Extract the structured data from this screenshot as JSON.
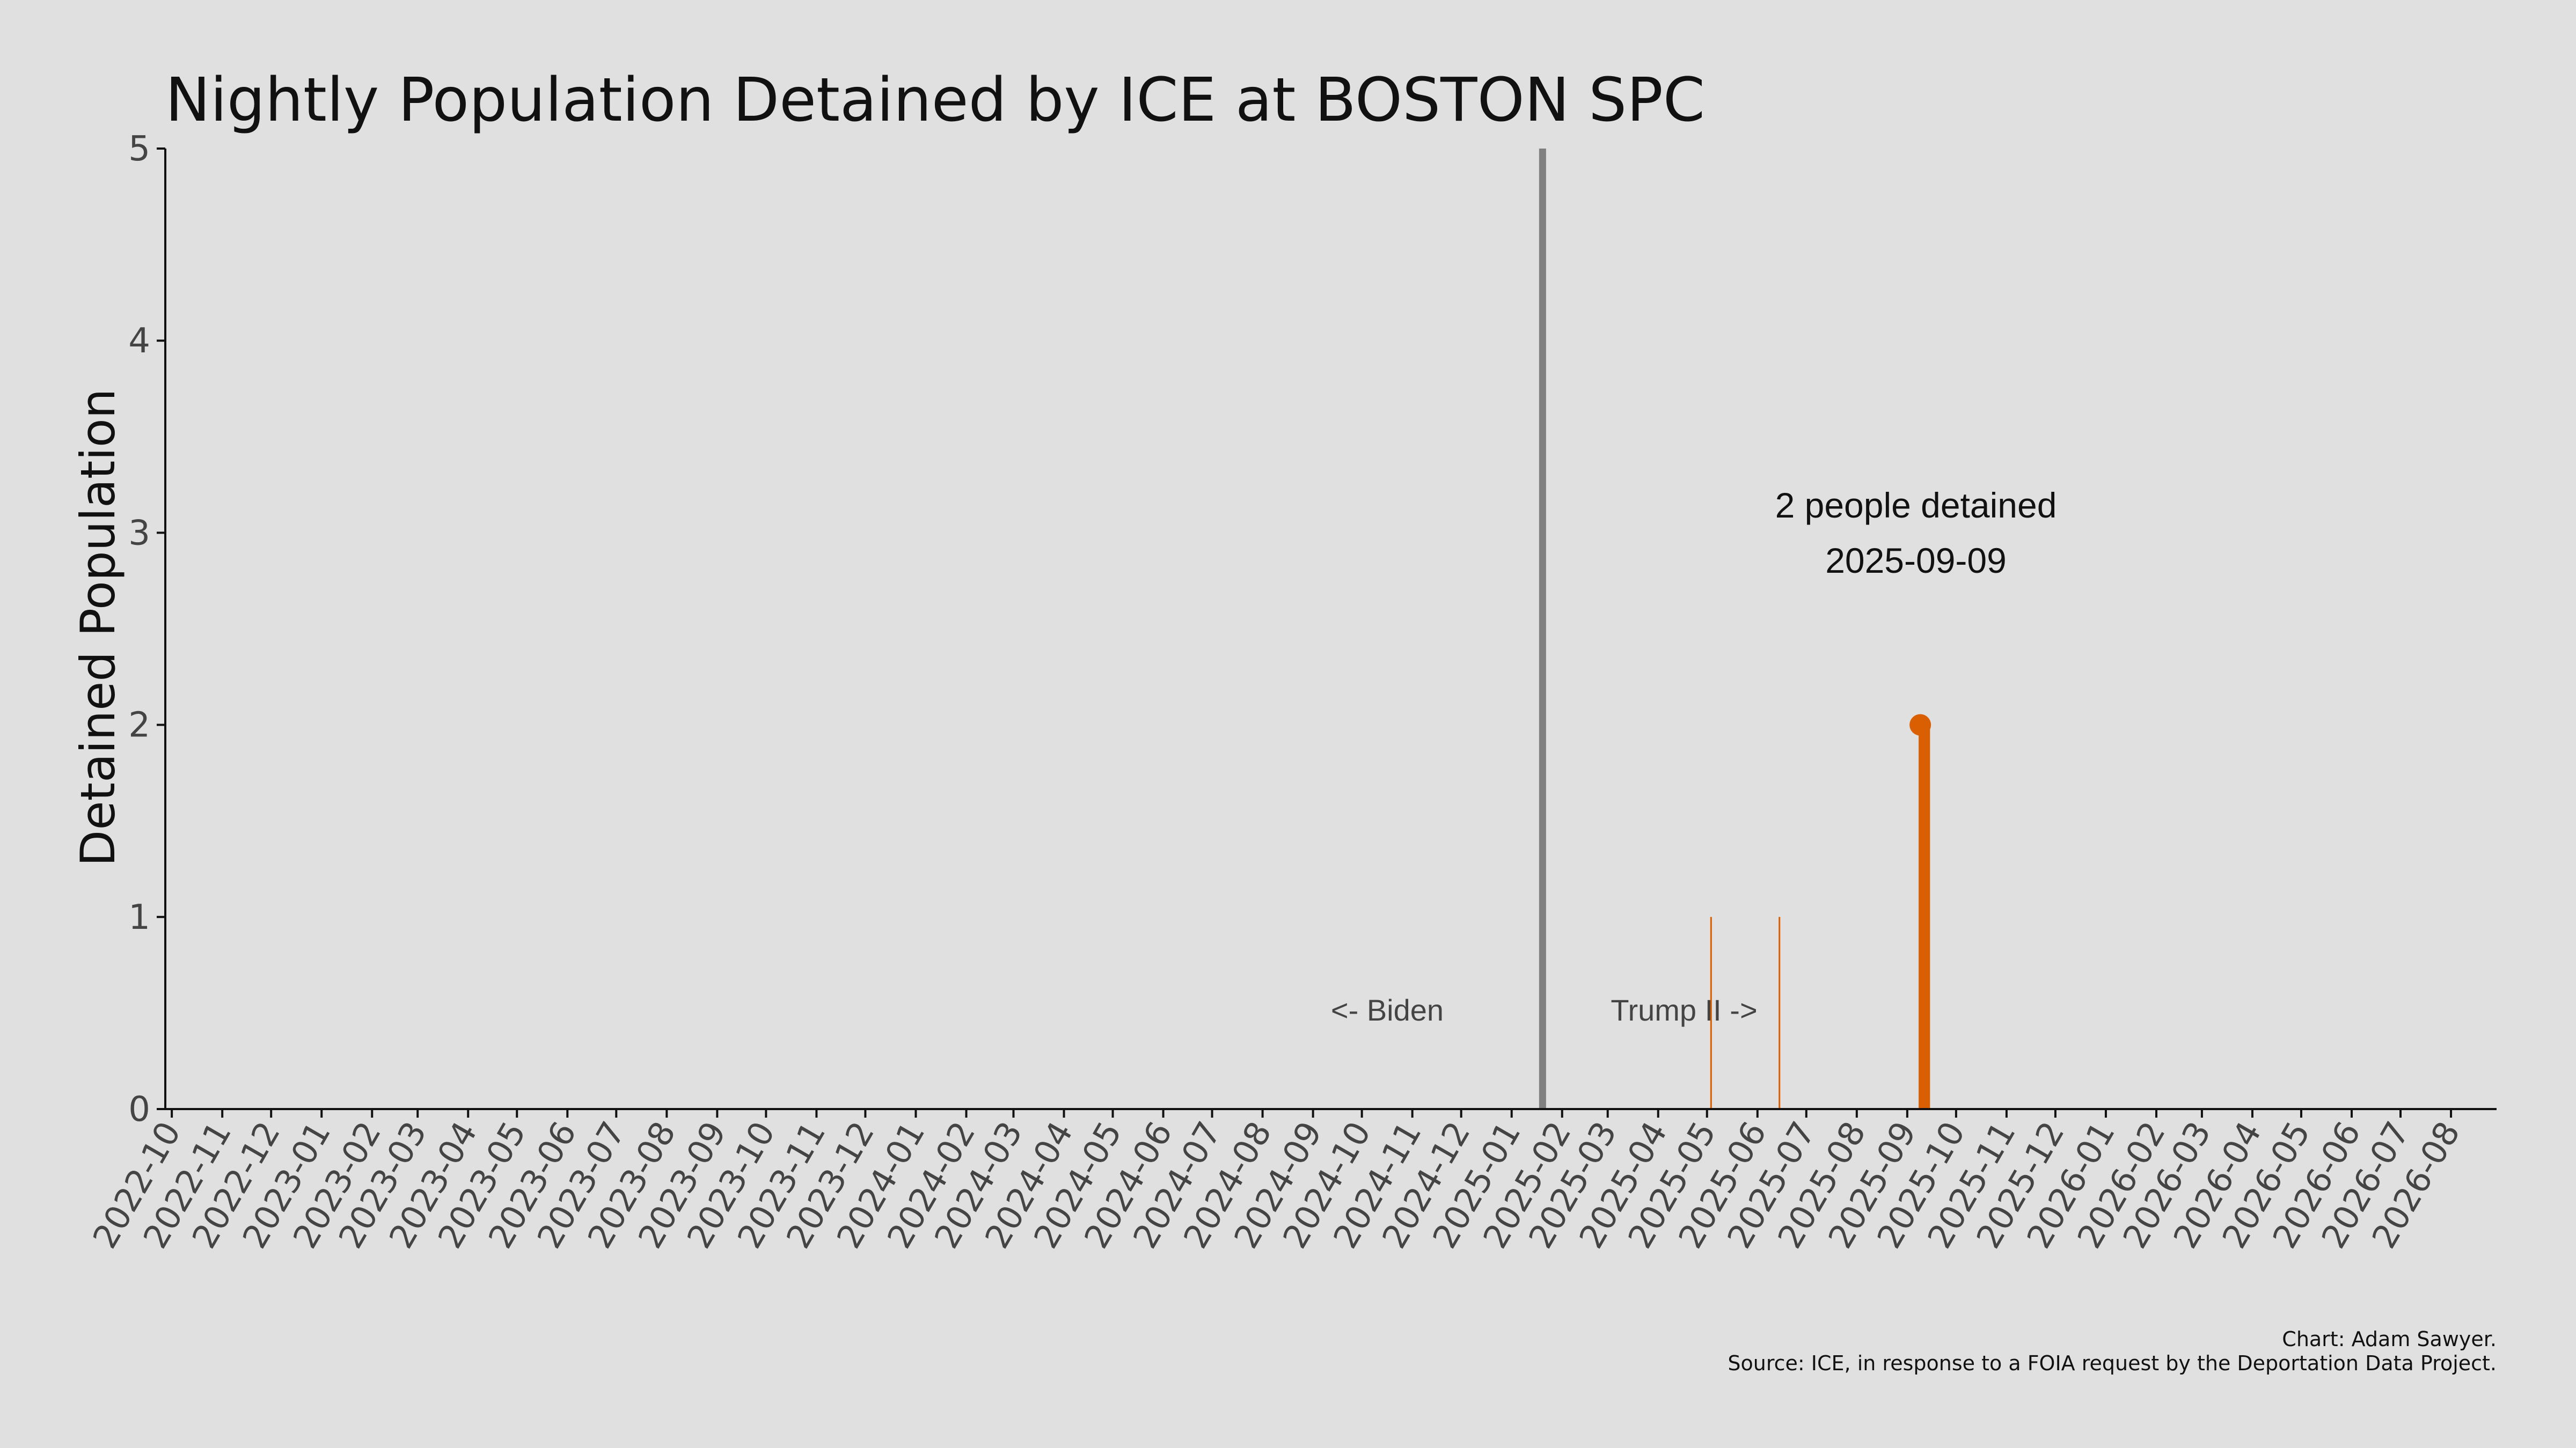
{
  "chart_data": {
    "type": "bar",
    "title": "Nightly Population Detained by ICE at BOSTON SPC",
    "ylabel": "Detained Population",
    "xlabel": "",
    "ylim": [
      0,
      5
    ],
    "yticks": [
      0,
      1,
      2,
      3,
      4,
      5
    ],
    "xlim": [
      "2022-09-27",
      "2026-08-29"
    ],
    "xticks": [
      "2022-10",
      "2022-11",
      "2022-12",
      "2023-01",
      "2023-02",
      "2023-03",
      "2023-04",
      "2023-05",
      "2023-06",
      "2023-07",
      "2023-08",
      "2023-09",
      "2023-10",
      "2023-11",
      "2023-12",
      "2024-01",
      "2024-02",
      "2024-03",
      "2024-04",
      "2024-05",
      "2024-06",
      "2024-07",
      "2024-08",
      "2024-09",
      "2024-10",
      "2024-11",
      "2024-12",
      "2025-01",
      "2025-02",
      "2025-03",
      "2025-04",
      "2025-05",
      "2025-06",
      "2025-07",
      "2025-08",
      "2025-09",
      "2025-10",
      "2025-11",
      "2025-12",
      "2026-01",
      "2026-02",
      "2026-03",
      "2026-04",
      "2026-05",
      "2026-06",
      "2026-07",
      "2026-08"
    ],
    "grid": false,
    "bar_color": "#d95f02",
    "divider_color": "#808080",
    "points": [
      {
        "date": "2025-05-03",
        "value": 1
      },
      {
        "date": "2025-06-14",
        "value": 1
      },
      {
        "date": "2025-09-08",
        "value": 2
      },
      {
        "date": "2025-09-09",
        "value": 2
      },
      {
        "date": "2025-09-10",
        "value": 2
      },
      {
        "date": "2025-09-11",
        "value": 2
      },
      {
        "date": "2025-09-12",
        "value": 2
      },
      {
        "date": "2025-09-13",
        "value": 2
      },
      {
        "date": "2025-09-14",
        "value": 2
      }
    ],
    "highlight": {
      "date": "2025-09-09",
      "value": 2,
      "label_line1": "2 people detained",
      "label_line2": "2025-09-09"
    },
    "divider_date": "2025-01-20",
    "left_era_label": "<- Biden",
    "right_era_label": "Trump II ->"
  },
  "credits": {
    "line1": "Chart: Adam Sawyer.",
    "line2": "Source: ICE, in response to a FOIA request by the Deportation Data Project."
  }
}
